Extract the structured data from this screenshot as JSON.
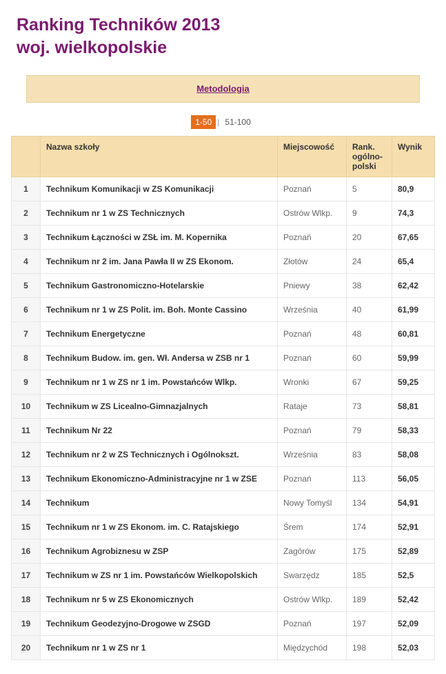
{
  "title_line1": "Ranking Techników 2013",
  "title_line2": "woj. wielkopolskie",
  "methodology_label": "Metodologia",
  "pager": {
    "active": "1-50",
    "next": "51-100"
  },
  "columns": {
    "pos": "",
    "name": "Nazwa szkoły",
    "city": "Miejscowość",
    "rank": "Rank. ogólno-polski",
    "score": "Wynik"
  },
  "rows": [
    {
      "pos": "1",
      "name": "Technikum Komunikacji w ZS Komunikacji",
      "city": "Poznań",
      "rank": "5",
      "score": "80,9"
    },
    {
      "pos": "2",
      "name": "Technikum nr 1 w ZS Technicznych",
      "city": "Ostrów Wlkp.",
      "rank": "9",
      "score": "74,3"
    },
    {
      "pos": "3",
      "name": "Technikum Łączności w ZSŁ im. M. Kopernika",
      "city": "Poznań",
      "rank": "20",
      "score": "67,65"
    },
    {
      "pos": "4",
      "name": "Technikum nr 2 im. Jana Pawła II w ZS Ekonom.",
      "city": "Złotów",
      "rank": "24",
      "score": "65,4"
    },
    {
      "pos": "5",
      "name": "Technikum Gastronomiczno-Hotelarskie",
      "city": "Pniewy",
      "rank": "38",
      "score": "62,42"
    },
    {
      "pos": "6",
      "name": "Technikum nr 1 w ZS Polit. im. Boh. Monte Cassino",
      "city": "Września",
      "rank": "40",
      "score": "61,99"
    },
    {
      "pos": "7",
      "name": "Technikum Energetyczne",
      "city": "Poznań",
      "rank": "48",
      "score": "60,81"
    },
    {
      "pos": "8",
      "name": "Technikum Budow. im. gen. Wł. Andersa w ZSB nr 1",
      "city": "Poznań",
      "rank": "60",
      "score": "59,99"
    },
    {
      "pos": "9",
      "name": "Technikum nr 1 w ZS nr 1 im. Powstańców Wlkp.",
      "city": "Wronki",
      "rank": "67",
      "score": "59,25"
    },
    {
      "pos": "10",
      "name": "Technikum w ZS Licealno-Gimnazjalnych",
      "city": "Rataje",
      "rank": "73",
      "score": "58,81"
    },
    {
      "pos": "11",
      "name": "Technikum Nr 22",
      "city": "Poznań",
      "rank": "79",
      "score": "58,33"
    },
    {
      "pos": "12",
      "name": "Technikum nr 2 w ZS Technicznych i Ogólnokszt.",
      "city": "Września",
      "rank": "83",
      "score": "58,08"
    },
    {
      "pos": "13",
      "name": "Technikum Ekonomiczno-Administracyjne nr 1 w ZSE",
      "city": "Poznań",
      "rank": "113",
      "score": "56,05"
    },
    {
      "pos": "14",
      "name": "Technikum",
      "city": "Nowy Tomyśl",
      "rank": "134",
      "score": "54,91"
    },
    {
      "pos": "15",
      "name": "Technikum nr 1 w ZS Ekonom. im. C. Ratajskiego",
      "city": "Śrem",
      "rank": "174",
      "score": "52,91"
    },
    {
      "pos": "16",
      "name": "Technikum Agrobiznesu w ZSP",
      "city": "Zagórów",
      "rank": "175",
      "score": "52,89"
    },
    {
      "pos": "17",
      "name": "Technikum w ZS nr 1 im. Powstańców Wielkopolskich",
      "city": "Swarzędz",
      "rank": "185",
      "score": "52,5"
    },
    {
      "pos": "18",
      "name": "Technikum nr 5 w ZS Ekonomicznych",
      "city": "Ostrów Wlkp.",
      "rank": "189",
      "score": "52,42"
    },
    {
      "pos": "19",
      "name": "Technikum Geodezyjno-Drogowe w ZSGD",
      "city": "Poznań",
      "rank": "197",
      "score": "52,09"
    },
    {
      "pos": "20",
      "name": "Technikum nr 1 w ZS nr 1",
      "city": "Międzychód",
      "rank": "198",
      "score": "52,03"
    }
  ],
  "styling": {
    "title_color": "#7a1a6f",
    "header_bg": "#f6deae",
    "header_border": "#e8d29a",
    "pager_active_bg": "#e56f1c",
    "cell_border": "#e6e6e6",
    "font_family": "Arial",
    "title_fontsize_pt": 19,
    "body_fontsize_pt": 9
  }
}
